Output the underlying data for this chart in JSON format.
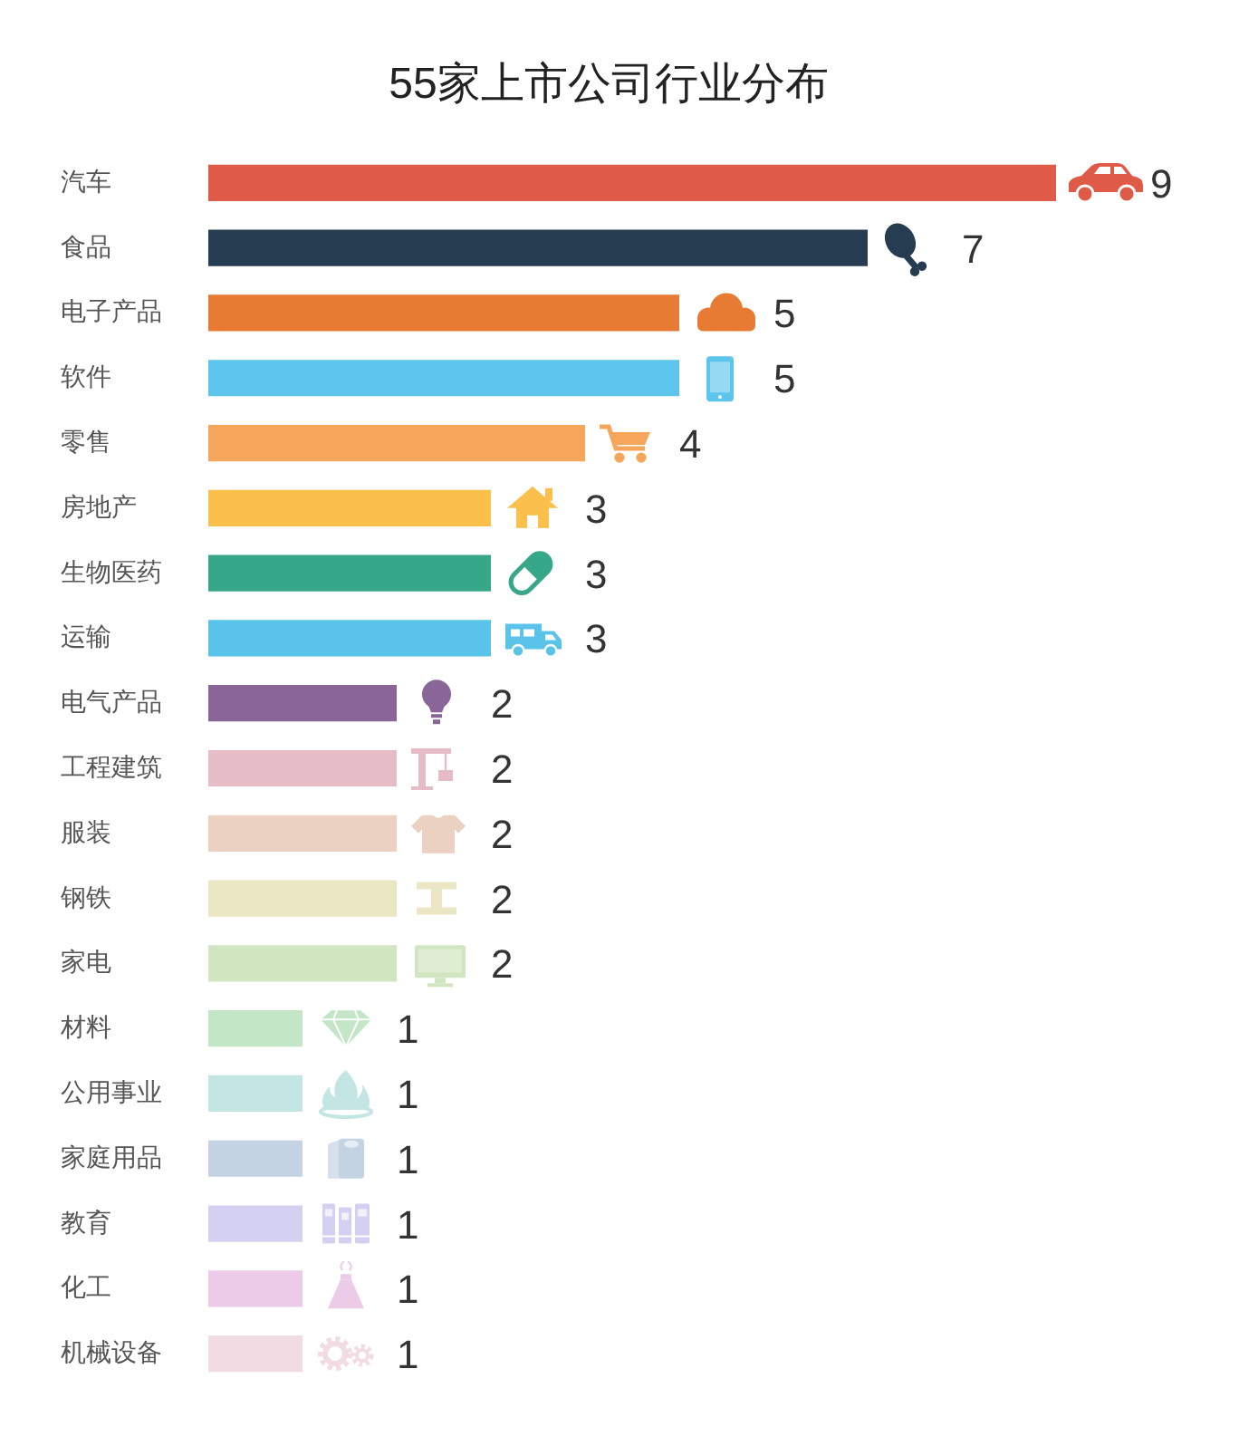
{
  "chart_data": {
    "type": "bar",
    "orientation": "horizontal",
    "title": "55家上市公司行业分布",
    "categories": [
      "汽车",
      "食品",
      "电子产品",
      "软件",
      "零售",
      "房地产",
      "生物医药",
      "运输",
      "电气产品",
      "工程建筑",
      "服装",
      "钢铁",
      "家电",
      "材料",
      "公用事业",
      "家庭用品",
      "教育",
      "化工",
      "机械设备"
    ],
    "values": [
      9,
      7,
      5,
      5,
      4,
      3,
      3,
      3,
      2,
      2,
      2,
      2,
      2,
      1,
      1,
      1,
      1,
      1,
      1
    ],
    "colors": [
      "#e05a48",
      "#263c51",
      "#e77b34",
      "#5dc5ec",
      "#f6a65a",
      "#fbc04c",
      "#36a889",
      "#5ac3ea",
      "#8a6597",
      "#e6bcc6",
      "#ead1c1",
      "#ebe6c3",
      "#d2e5c1",
      "#c2e6c6",
      "#c3e5e3",
      "#c4d3e3",
      "#d3d0f2",
      "#ebcbe8",
      "#f2dce4"
    ],
    "data_labels": true,
    "tick_labels": "y"
  }
}
